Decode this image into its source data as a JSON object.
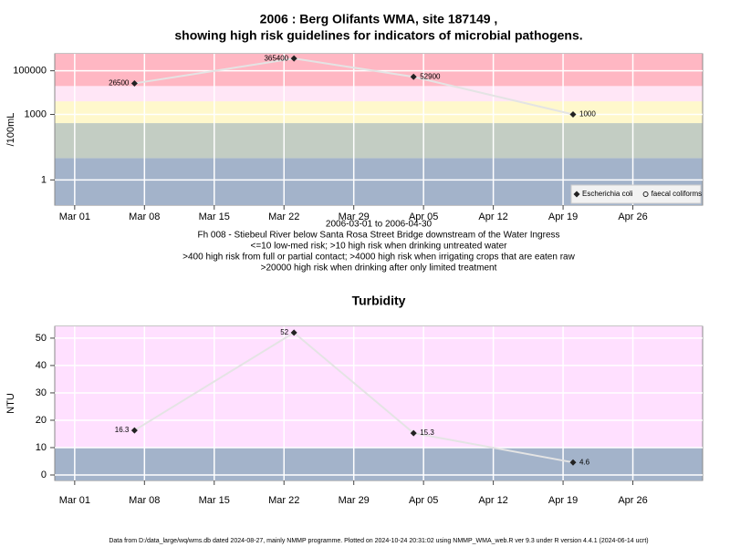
{
  "chart_data": [
    {
      "type": "line",
      "title": [
        "2006 : Berg Olifants WMA, site 187149 ,",
        "showing high risk guidelines for indicators of microbial pathogens."
      ],
      "y_label": "/100mL",
      "log_y": true,
      "x": [
        "2006-03-07",
        "2006-03-23",
        "2006-04-04",
        "2006-04-20"
      ],
      "series": [
        {
          "name": "Escherichia coli",
          "color": "#222222",
          "marker": "diamond",
          "values": [
            26500,
            365400,
            52900,
            1000
          ]
        },
        {
          "name": "faecal coliforms",
          "color": "#222222",
          "marker": "circle",
          "values": [
            null,
            null,
            null,
            null
          ]
        }
      ],
      "line_color": "#e4e4e4",
      "xlim": [
        "2006-02-27",
        "2006-05-03"
      ],
      "xticks": [
        {
          "value": "2006-03-01",
          "label": "Mar 01"
        },
        {
          "value": "2006-03-08",
          "label": "Mar 08"
        },
        {
          "value": "2006-03-15",
          "label": "Mar 15"
        },
        {
          "value": "2006-03-22",
          "label": "Mar 22"
        },
        {
          "value": "2006-03-29",
          "label": "Mar 29"
        },
        {
          "value": "2006-04-05",
          "label": "Apr 05"
        },
        {
          "value": "2006-04-12",
          "label": "Apr 12"
        },
        {
          "value": "2006-04-19",
          "label": "Apr 19"
        },
        {
          "value": "2006-04-26",
          "label": "Apr 26"
        }
      ],
      "ylim": [
        0.07,
        600000
      ],
      "yticks": [
        1,
        1000,
        100000
      ],
      "bands": [
        {
          "to": 10,
          "color": "#a3b3ca"
        },
        {
          "from": 10,
          "to": 400,
          "color": "#c3cdc3"
        },
        {
          "from": 400,
          "to": 4000,
          "color": "#fff8cc"
        },
        {
          "from": 4000,
          "to": 20000,
          "color": "#ffe6f6"
        },
        {
          "from": 20000,
          "color": "#ffb7c3"
        }
      ],
      "grid": true,
      "legend": "bottom-right",
      "notes": [
        "2006-03-01 to 2006-04-30",
        "Fh 008 - Stiebeul River below Santa Rosa Street Bridge downstream of the Water Ingress",
        "<=10 low-med risk; >10 high risk when drinking untreated water",
        ">400 high risk from full or partial contact; >4000 high risk when irrigating crops that are eaten raw",
        ">20000 high risk when drinking after only limited treatment"
      ]
    },
    {
      "type": "line",
      "title": [
        "Turbidity"
      ],
      "y_label": "NTU",
      "log_y": false,
      "x": [
        "2006-03-07",
        "2006-03-23",
        "2006-04-04",
        "2006-04-20"
      ],
      "series": [
        {
          "color": "#222222",
          "marker": "diamond",
          "values": [
            16.3,
            52,
            15.3,
            4.6
          ]
        }
      ],
      "line_color": "#e4e4e4",
      "xlim": [
        "2006-02-27",
        "2006-05-03"
      ],
      "xticks": [
        {
          "value": "2006-03-01",
          "label": "Mar 01"
        },
        {
          "value": "2006-03-08",
          "label": "Mar 08"
        },
        {
          "value": "2006-03-15",
          "label": "Mar 15"
        },
        {
          "value": "2006-03-22",
          "label": "Mar 22"
        },
        {
          "value": "2006-03-29",
          "label": "Mar 29"
        },
        {
          "value": "2006-04-05",
          "label": "Apr 05"
        },
        {
          "value": "2006-04-12",
          "label": "Apr 12"
        },
        {
          "value": "2006-04-19",
          "label": "Apr 19"
        },
        {
          "value": "2006-04-26",
          "label": "Apr 26"
        }
      ],
      "ylim": [
        -2,
        54.3
      ],
      "yticks": [
        0,
        10,
        20,
        30,
        40,
        50
      ],
      "bands": [
        {
          "to": 10,
          "color": "#a3b3ca"
        },
        {
          "from": 10,
          "color": "#ffe0ff"
        }
      ],
      "grid": true
    }
  ],
  "footer": "Data from D:/data_large/wq/wms.db dated 2024-08-27, mainly NMMP programme. Plotted on 2024-10-24 20:31:02 using NMMP_WMA_web.R ver 9.3 under R version 4.4.1 (2024-06-14 ucrt)"
}
